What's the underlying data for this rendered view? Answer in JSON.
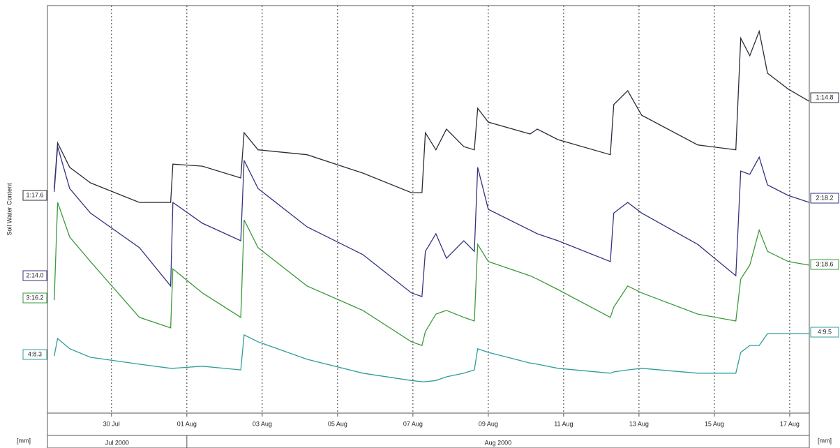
{
  "chart_data": {
    "type": "line",
    "y_label": "Soil Water Content",
    "unit_labels": [
      "[mm]",
      "[mm]"
    ],
    "grid": true,
    "xlim": [
      210.3,
      230.52
    ],
    "ylim": [
      0,
      100
    ],
    "xticks": [
      {
        "value": 212,
        "label": "30 Jul"
      },
      {
        "value": 214,
        "label": "01 Aug"
      },
      {
        "value": 216,
        "label": "03 Aug"
      },
      {
        "value": 218,
        "label": "05 Aug"
      },
      {
        "value": 220,
        "label": "07 Aug"
      },
      {
        "value": 222,
        "label": "09 Aug"
      },
      {
        "value": 224,
        "label": "11 Aug"
      },
      {
        "value": 226,
        "label": "13 Aug"
      },
      {
        "value": 228,
        "label": "15 Aug"
      },
      {
        "value": 230,
        "label": "17 Aug"
      }
    ],
    "periods": [
      {
        "label": "Jul 2000",
        "start": 210.3,
        "end": 214
      },
      {
        "label": "Aug 2000",
        "start": 214,
        "end": 230.52
      }
    ],
    "x": [
      210.48,
      210.57,
      210.89,
      211.44,
      212.74,
      213.57,
      213.63,
      214.41,
      215.43,
      215.52,
      215.89,
      217.19,
      218.67,
      219.96,
      220.24,
      220.33,
      220.61,
      220.89,
      221.35,
      221.63,
      221.72,
      222.0,
      223.11,
      223.3,
      223.85,
      225.24,
      225.33,
      225.7,
      226.07,
      227.56,
      228.57,
      228.7,
      228.94,
      229.19,
      229.41,
      229.96,
      230.52
    ],
    "series": [
      {
        "name": "1",
        "color": "#2b2b3a",
        "start_label": "1:17.6",
        "end_label": "1:14.8",
        "values": [
          55.1,
          66.3,
          60.3,
          56.5,
          51.7,
          51.7,
          61.1,
          60.6,
          57.7,
          68.8,
          64.6,
          63.4,
          58.9,
          54.1,
          54.1,
          68.8,
          64.6,
          69.7,
          65.4,
          64.6,
          74.8,
          71.4,
          68.5,
          69.7,
          67.1,
          63.4,
          75.7,
          79.1,
          73.1,
          65.8,
          64.6,
          92.0,
          87.7,
          93.7,
          83.4,
          79.5,
          76.5
        ]
      },
      {
        "name": "2",
        "color": "#333380",
        "start_label": "2:14.0",
        "end_label": "2:18.2",
        "values": [
          54.3,
          65.4,
          55.1,
          49.1,
          40.6,
          31.2,
          51.7,
          46.6,
          42.3,
          62.0,
          55.1,
          45.7,
          38.9,
          29.5,
          28.6,
          39.7,
          44.0,
          38.0,
          42.3,
          39.7,
          60.3,
          50.0,
          44.9,
          44.0,
          42.3,
          37.2,
          49.1,
          51.7,
          49.1,
          41.4,
          33.7,
          59.4,
          58.6,
          62.8,
          56.0,
          53.4,
          51.7
        ]
      },
      {
        "name": "3",
        "color": "#3a9a3a",
        "start_label": "3:16.2",
        "end_label": "3:18.6",
        "values": [
          27.7,
          51.7,
          43.2,
          37.2,
          23.5,
          20.9,
          35.4,
          29.5,
          23.5,
          47.4,
          40.6,
          31.2,
          25.2,
          17.5,
          16.6,
          20.0,
          24.3,
          25.2,
          23.5,
          22.6,
          41.4,
          37.2,
          33.7,
          32.9,
          30.3,
          23.5,
          26.0,
          31.2,
          29.5,
          24.3,
          22.6,
          32.9,
          36.3,
          44.9,
          39.7,
          37.2,
          36.3
        ]
      },
      {
        "name": "4",
        "color": "#2f9c9c",
        "start_label": "4:8.3",
        "end_label": "4:9.5",
        "values": [
          14.0,
          18.3,
          15.8,
          13.7,
          12.0,
          11.0,
          11.0,
          11.5,
          10.6,
          19.2,
          17.5,
          13.2,
          9.8,
          8.0,
          7.7,
          7.7,
          8.0,
          8.9,
          9.8,
          10.6,
          15.8,
          14.9,
          12.3,
          12.0,
          11.0,
          9.8,
          10.1,
          10.6,
          11.0,
          9.8,
          9.8,
          14.9,
          16.6,
          16.6,
          19.5,
          19.5,
          19.5
        ]
      }
    ]
  }
}
